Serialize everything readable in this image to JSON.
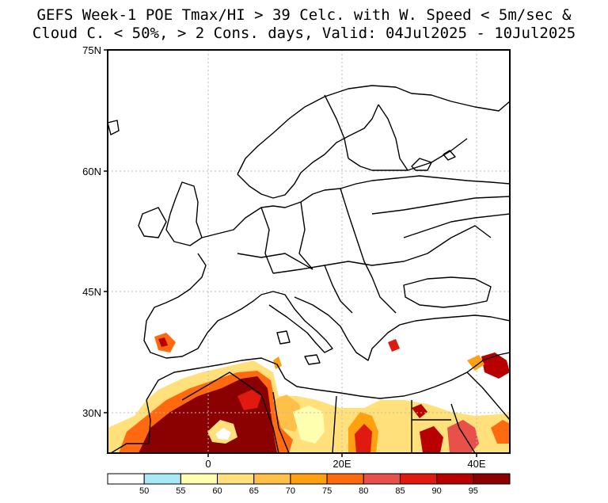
{
  "title": {
    "line1": "GEFS Week-1 POE Tmax/HI > 39 Celc. with W. Speed < 5m/sec &",
    "line2": "Cloud C. < 50%, > 2 Cons. days, Valid: 04Jul2025 - 10Jul2025"
  },
  "map": {
    "region": "Europe / North Africa",
    "lat_ticks": [
      "75N",
      "60N",
      "45N",
      "30N"
    ],
    "lon_ticks": [
      "0",
      "20E",
      "40E"
    ],
    "grid": true,
    "frame_color": "#000000"
  },
  "colorbar": {
    "labels": [
      "50",
      "55",
      "60",
      "65",
      "70",
      "75",
      "80",
      "85",
      "90",
      "95"
    ],
    "colors": [
      "#ffffff",
      "#a9e8f5",
      "#ffffb0",
      "#ffe07a",
      "#ffc04a",
      "#ffa010",
      "#ff6a10",
      "#e8504a",
      "#e01a10",
      "#b80000",
      "#8b0000"
    ]
  }
}
